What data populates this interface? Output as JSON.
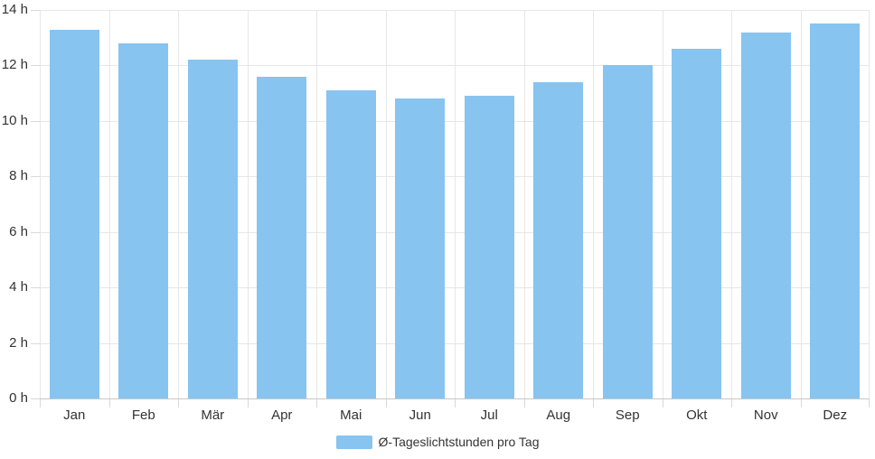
{
  "chart_data": {
    "type": "bar",
    "title": "",
    "categories": [
      "Jan",
      "Feb",
      "Mär",
      "Apr",
      "Mai",
      "Jun",
      "Jul",
      "Aug",
      "Sep",
      "Okt",
      "Nov",
      "Dez"
    ],
    "series": [
      {
        "name": "Ø-Tageslichtstunden pro Tag",
        "values": [
          13.3,
          12.8,
          12.2,
          11.6,
          11.1,
          10.8,
          10.9,
          11.4,
          12.0,
          12.6,
          13.2,
          13.5
        ]
      }
    ],
    "xlabel": "",
    "ylabel": "",
    "y_ticks": [
      0,
      2,
      4,
      6,
      8,
      10,
      12,
      14
    ],
    "y_tick_labels": [
      "0 h",
      "2 h",
      "4 h",
      "6 h",
      "8 h",
      "10 h",
      "12 h",
      "14 h"
    ],
    "ylim": [
      0,
      14
    ],
    "grid": true,
    "legend_position": "bottom",
    "colors": {
      "bar": "#87c4f0",
      "grid": "#e7e7e7",
      "axis_zero_line": "#c8c8c8",
      "tick_mark": "#d9d9d9",
      "label_text": "#333333"
    }
  }
}
